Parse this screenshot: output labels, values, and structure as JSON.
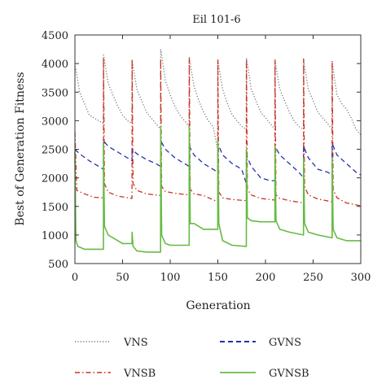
{
  "chart_data": {
    "type": "line",
    "title": "Eil 101-6",
    "xlabel": "Generation",
    "ylabel": "Best of Generation Fitness",
    "xlim": [
      0,
      300
    ],
    "ylim": [
      500,
      4500
    ],
    "xticks": [
      0,
      50,
      100,
      150,
      200,
      250,
      300
    ],
    "yticks": [
      500,
      1000,
      1500,
      2000,
      2500,
      3000,
      3500,
      4000,
      4500
    ],
    "grid": false,
    "legend_position": "bottom",
    "series": [
      {
        "name": "VNS",
        "color": "#777777",
        "style": "dotted",
        "x": [
          0,
          1,
          5,
          10,
          15,
          20,
          25,
          29.9,
          30,
          31,
          35,
          40,
          45,
          50,
          55,
          59.9,
          60,
          61,
          65,
          70,
          75,
          80,
          85,
          89.9,
          90,
          91,
          95,
          100,
          105,
          110,
          115,
          119.9,
          120,
          121,
          125,
          130,
          135,
          140,
          145,
          149.9,
          150,
          151,
          155,
          160,
          165,
          170,
          175,
          179.9,
          180,
          181,
          185,
          190,
          195,
          200,
          205,
          209.9,
          210,
          211,
          215,
          220,
          225,
          230,
          235,
          239.9,
          240,
          241,
          245,
          250,
          255,
          260,
          265,
          269.9,
          270,
          271,
          275,
          280,
          285,
          290,
          295,
          300
        ],
        "y": [
          3950,
          3900,
          3500,
          3300,
          3100,
          3050,
          3000,
          2950,
          4150,
          4050,
          3650,
          3450,
          3250,
          3100,
          3000,
          2950,
          4050,
          3950,
          3550,
          3350,
          3150,
          3050,
          2950,
          2850,
          4250,
          4150,
          3700,
          3450,
          3250,
          3100,
          3000,
          2900,
          4120,
          4000,
          3600,
          3350,
          3150,
          3000,
          2900,
          2500,
          4080,
          3950,
          3550,
          3300,
          3100,
          3000,
          2900,
          2850,
          4100,
          4000,
          3550,
          3350,
          3150,
          3050,
          2950,
          2850,
          4080,
          3950,
          3550,
          3350,
          3150,
          3000,
          2900,
          2850,
          4080,
          3950,
          3550,
          3350,
          3150,
          3050,
          2950,
          2850,
          4020,
          3900,
          3450,
          3300,
          3200,
          3050,
          2850,
          2750
        ]
      },
      {
        "name": "VNSB",
        "color": "#cc3322",
        "style": "dashdot",
        "x": [
          0,
          2,
          10,
          20,
          29.9,
          30,
          31,
          35,
          45,
          59.9,
          60,
          61,
          65,
          75,
          89.9,
          90,
          91,
          95,
          105,
          119.9,
          120,
          121,
          125,
          135,
          149.9,
          150,
          151,
          155,
          165,
          179.9,
          180,
          181,
          185,
          195,
          209.9,
          210,
          211,
          215,
          225,
          239.9,
          240,
          241,
          245,
          255,
          269.9,
          270,
          271,
          275,
          285,
          300
        ],
        "y": [
          2800,
          1780,
          1720,
          1660,
          1650,
          4100,
          1900,
          1750,
          1680,
          1640,
          4080,
          1900,
          1780,
          1720,
          1690,
          4080,
          1850,
          1760,
          1730,
          1700,
          4080,
          1800,
          1720,
          1690,
          1580,
          4070,
          1750,
          1650,
          1620,
          1600,
          4060,
          1800,
          1700,
          1640,
          1610,
          4060,
          1700,
          1640,
          1600,
          1560,
          4080,
          1850,
          1700,
          1630,
          1580,
          4050,
          1800,
          1650,
          1560,
          1510
        ]
      },
      {
        "name": "GVNS",
        "color": "#2233aa",
        "style": "dashed",
        "x": [
          0,
          5,
          15,
          25,
          29.9,
          30,
          35,
          45,
          55,
          59.9,
          60,
          65,
          75,
          85,
          89.9,
          90,
          95,
          105,
          115,
          119.9,
          120,
          125,
          135,
          145,
          149.9,
          150,
          155,
          165,
          175,
          179.9,
          180,
          185,
          195,
          205,
          209.9,
          210,
          215,
          225,
          235,
          239.9,
          240,
          245,
          255,
          265,
          269.9,
          270,
          275,
          285,
          295,
          300
        ],
        "y": [
          2500,
          2420,
          2300,
          2200,
          2150,
          2650,
          2550,
          2450,
          2350,
          2300,
          2500,
          2420,
          2320,
          2250,
          2200,
          2650,
          2500,
          2350,
          2250,
          2200,
          2550,
          2400,
          2250,
          2150,
          2100,
          2600,
          2400,
          2250,
          2150,
          1900,
          2400,
          2200,
          2000,
          1950,
          1950,
          2550,
          2400,
          2250,
          2100,
          2000,
          2550,
          2350,
          2150,
          2100,
          2050,
          2600,
          2400,
          2250,
          2100,
          2050
        ]
      },
      {
        "name": "GVNSB",
        "color": "#66bb44",
        "style": "solid",
        "x": [
          0,
          1,
          3,
          10,
          29.9,
          30,
          31,
          35,
          40,
          45,
          50,
          59.9,
          60,
          61,
          65,
          75,
          89.9,
          90,
          91,
          95,
          100,
          119.9,
          120,
          121,
          125,
          135,
          149.9,
          150,
          151,
          155,
          165,
          179.9,
          180,
          181,
          185,
          195,
          209.9,
          210,
          211,
          215,
          225,
          239.9,
          240,
          241,
          245,
          255,
          269.9,
          270,
          271,
          275,
          285,
          300
        ],
        "y": [
          2450,
          900,
          800,
          750,
          750,
          2600,
          1150,
          1000,
          950,
          900,
          850,
          850,
          1050,
          800,
          720,
          700,
          700,
          2900,
          1000,
          850,
          820,
          820,
          2900,
          1200,
          1200,
          1100,
          1100,
          2650,
          1200,
          900,
          820,
          800,
          2500,
          1300,
          1250,
          1230,
          1230,
          2550,
          1250,
          1100,
          1050,
          1000,
          2350,
          1200,
          1050,
          1000,
          950,
          2350,
          1100,
          950,
          900,
          900
        ]
      }
    ]
  }
}
